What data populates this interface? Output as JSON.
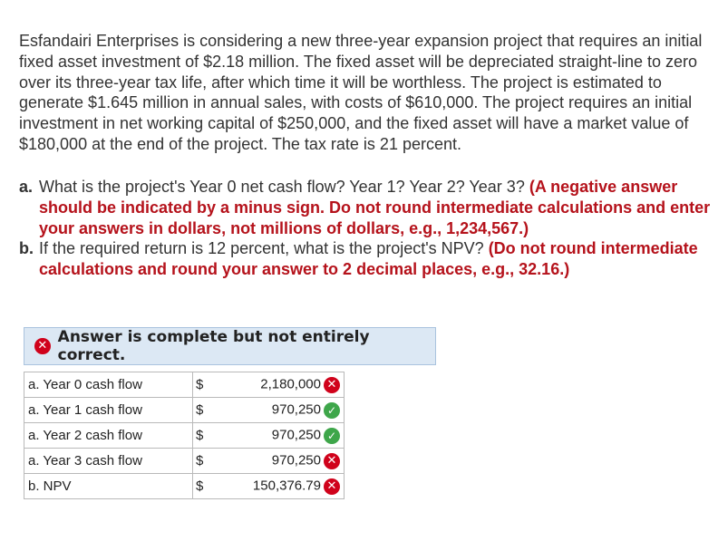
{
  "problem_text": "Esfandairi Enterprises is considering a new three-year expansion project that requires an initial fixed asset investment of $2.18 million. The fixed asset will be depreciated straight-line to zero over its three-year tax life, after which time it will be worthless. The project is estimated to generate $1.645 million in annual sales, with costs of $610,000. The project requires an initial investment in net working capital of $250,000, and the fixed asset will have a market value of $180,000 at the end of the project. The tax rate is 21 percent.",
  "questions": [
    {
      "letter": "a.",
      "text": "What is the project's Year 0 net cash flow? Year 1? Year 2? Year 3? ",
      "hint": "(A negative answer should be indicated by a minus sign. Do not round intermediate calculations and enter your answers in dollars, not millions of dollars, e.g., 1,234,567.)"
    },
    {
      "letter": "b.",
      "text": "If the required return is 12 percent, what is the project's NPV? ",
      "hint": "(Do not round intermediate calculations and round your answer to 2 decimal places, e.g., 32.16.)"
    }
  ],
  "banner": {
    "text": "Answer is complete but not entirely correct.",
    "icon": "x-icon"
  },
  "answers": [
    {
      "label": "a. Year 0 cash flow",
      "currency": "$",
      "value": "2,180,000",
      "status": "incorrect"
    },
    {
      "label": "a. Year 1 cash flow",
      "currency": "$",
      "value": "970,250",
      "status": "correct"
    },
    {
      "label": "a. Year 2 cash flow",
      "currency": "$",
      "value": "970,250",
      "status": "correct"
    },
    {
      "label": "a. Year 3 cash flow",
      "currency": "$",
      "value": "970,250",
      "status": "incorrect"
    },
    {
      "label": "b. NPV",
      "currency": "$",
      "value": "150,376.79",
      "status": "incorrect"
    }
  ],
  "colors": {
    "incorrect": "#d0021b",
    "correct": "#3ea64a",
    "hint": "#b5121b",
    "banner_bg": "#dce8f4"
  }
}
